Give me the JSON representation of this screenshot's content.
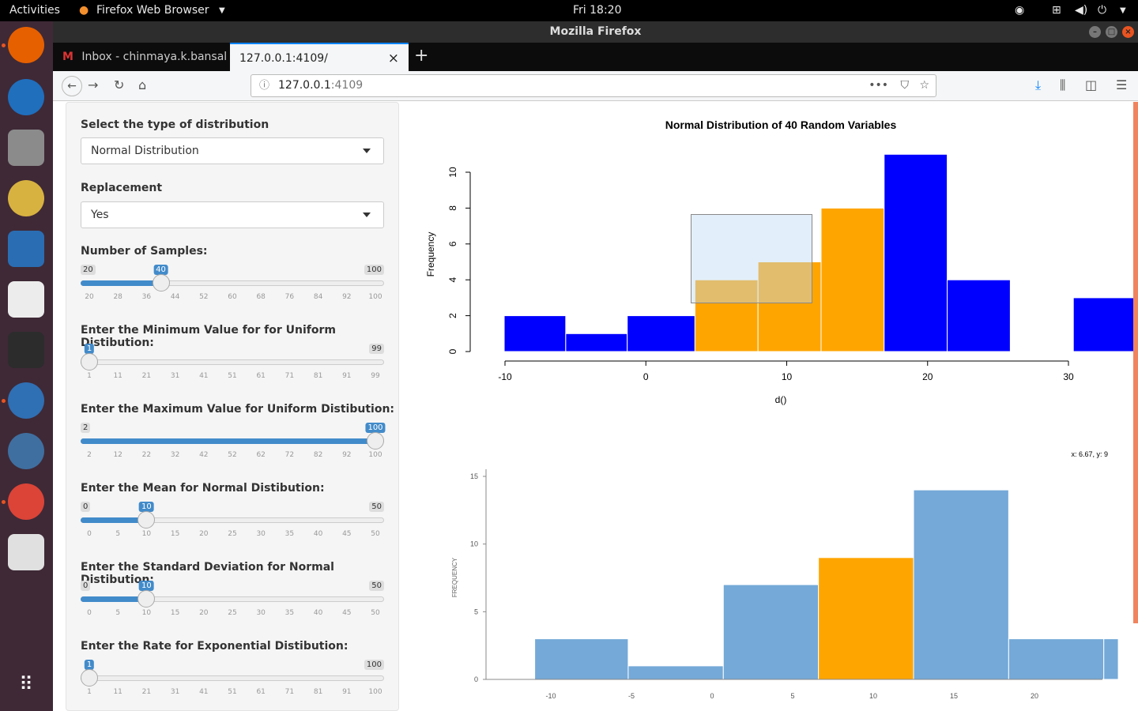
{
  "topbar": {
    "activities": "Activities",
    "app": "Firefox Web Browser",
    "clock": "Fri 18:20"
  },
  "window": {
    "title": "Mozilla Firefox"
  },
  "tabs": [
    {
      "label": "Inbox - chinmaya.k.bansal"
    },
    {
      "label": "127.0.0.1:4109/"
    }
  ],
  "url": {
    "host": "127.0.0.1",
    "port": ":4109"
  },
  "sidebar": {
    "dist_label": "Select the type of distribution",
    "dist_value": "Normal Distribution",
    "repl_label": "Replacement",
    "repl_value": "Yes",
    "sliders": [
      {
        "label": "Number of Samples:",
        "min": 20,
        "max": 100,
        "value": 40,
        "ticks": [
          "20",
          "28",
          "36",
          "44",
          "52",
          "60",
          "68",
          "76",
          "84",
          "92",
          "100"
        ]
      },
      {
        "label": "Enter the Minimum Value for for Uniform Distibution:",
        "min": 1,
        "max": 99,
        "value": 1,
        "ticks": [
          "1",
          "11",
          "21",
          "31",
          "41",
          "51",
          "61",
          "71",
          "81",
          "91",
          "99"
        ]
      },
      {
        "label": "Enter the Maximum Value for Uniform Distibution:",
        "min": 2,
        "max": 100,
        "value": 100,
        "ticks": [
          "2",
          "12",
          "22",
          "32",
          "42",
          "52",
          "62",
          "72",
          "82",
          "92",
          "100"
        ]
      },
      {
        "label": "Enter the Mean for Normal Distibution:",
        "min": 0,
        "max": 50,
        "value": 10,
        "ticks": [
          "0",
          "5",
          "10",
          "15",
          "20",
          "25",
          "30",
          "35",
          "40",
          "45",
          "50"
        ]
      },
      {
        "label": "Enter the Standard Deviation for Normal Distibution:",
        "min": 0,
        "max": 50,
        "value": 10,
        "ticks": [
          "0",
          "5",
          "10",
          "15",
          "20",
          "25",
          "30",
          "35",
          "40",
          "45",
          "50"
        ]
      },
      {
        "label": "Enter the Rate for Exponential Distibution:",
        "min": 1,
        "max": 100,
        "value": 1,
        "ticks": [
          "1",
          "11",
          "21",
          "31",
          "41",
          "51",
          "61",
          "71",
          "81",
          "91",
          "100"
        ]
      }
    ]
  },
  "chart_data": [
    {
      "type": "bar",
      "title": "Normal Distribution of 40 Random Variables",
      "xlabel": "d()",
      "ylabel": "Frequency",
      "xlim": [
        -10,
        30
      ],
      "ylim": [
        0,
        10
      ],
      "xticks": [
        "-10",
        "0",
        "10",
        "20",
        "30"
      ],
      "yticks": [
        "0",
        "2",
        "4",
        "6",
        "8",
        "10"
      ],
      "bins": [
        {
          "x0": -11,
          "x1": -7,
          "y": 2,
          "highlight": false
        },
        {
          "x0": -7,
          "x1": -3,
          "y": 1,
          "highlight": false
        },
        {
          "x0": -3,
          "x1": 1.4,
          "y": 2,
          "highlight": false
        },
        {
          "x0": 1.4,
          "x1": 5.5,
          "y": 4,
          "highlight": true
        },
        {
          "x0": 5.5,
          "x1": 9.6,
          "y": 5,
          "highlight": true
        },
        {
          "x0": 9.6,
          "x1": 13.7,
          "y": 8,
          "highlight": true
        },
        {
          "x0": 13.7,
          "x1": 17.8,
          "y": 11,
          "highlight": false
        },
        {
          "x0": 17.8,
          "x1": 21.9,
          "y": 4,
          "highlight": false
        },
        {
          "x0": 26,
          "x1": 30.1,
          "y": 3,
          "highlight": false
        }
      ],
      "colors": {
        "base": "#0000ff",
        "highlight": "#ffa500"
      }
    },
    {
      "type": "bar",
      "xlabel": "",
      "ylabel": "FREQUENCY",
      "readout": "x: 6.67, y: 9",
      "xticks": [
        "-10",
        "-5",
        "0",
        "5",
        "10",
        "15",
        "20"
      ],
      "yticks": [
        "0",
        "5",
        "10",
        "15"
      ],
      "ylim": [
        0,
        15
      ],
      "bins": [
        {
          "x0": -11,
          "x1": -5.2,
          "y": 3,
          "highlight": false
        },
        {
          "x0": -5.2,
          "x1": 0.7,
          "y": 1,
          "highlight": false
        },
        {
          "x0": 0.7,
          "x1": 6.6,
          "y": 7,
          "highlight": false
        },
        {
          "x0": 6.6,
          "x1": 12.5,
          "y": 9,
          "highlight": true
        },
        {
          "x0": 12.5,
          "x1": 18.4,
          "y": 14,
          "highlight": false
        },
        {
          "x0": 18.4,
          "x1": 24.3,
          "y": 3,
          "highlight": false
        },
        {
          "x0": 24.3,
          "x1": 25.2,
          "y": 3,
          "highlight": false
        }
      ],
      "colors": {
        "base": "#74a9d8",
        "highlight": "#ffa500"
      }
    }
  ]
}
